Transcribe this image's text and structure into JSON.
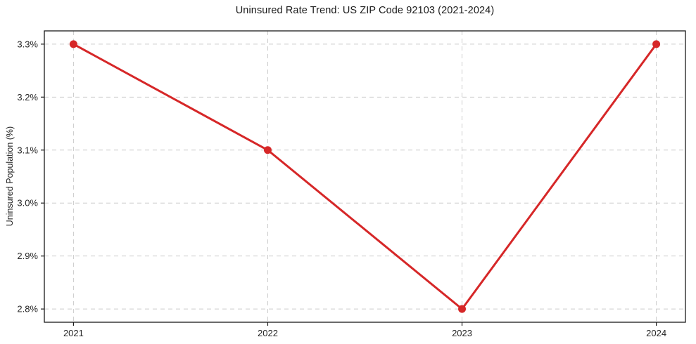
{
  "figure": {
    "title": "Uninsured Rate Trend: US ZIP Code 92103 (2021-2024)",
    "ylabel": "Uninsured Population (%)",
    "xlabel": ""
  },
  "chart_data": {
    "type": "line",
    "categories": [
      "2021",
      "2022",
      "2023",
      "2024"
    ],
    "x": [
      2021,
      2022,
      2023,
      2024
    ],
    "values": [
      3.3,
      3.1,
      2.8,
      3.3
    ],
    "title": "Uninsured Rate Trend: US ZIP Code 92103 (2021-2024)",
    "xlabel": "",
    "ylabel": "Uninsured Population (%)",
    "yticks": [
      2.8,
      2.9,
      3.0,
      3.1,
      3.2,
      3.3
    ],
    "ytick_labels": [
      "2.8%",
      "2.9%",
      "3.0%",
      "3.1%",
      "3.2%",
      "3.3%"
    ],
    "ylim": [
      2.775,
      3.325
    ],
    "xlim": [
      2020.85,
      2024.15
    ],
    "grid": true,
    "grid_style": "dashed",
    "legend": "none",
    "colors": {
      "line": "#d62728",
      "marker": "#d62728",
      "grid": "#cbcbcb",
      "spine": "#1a1a1a",
      "tick_text": "#262626",
      "background": "#ffffff"
    }
  }
}
